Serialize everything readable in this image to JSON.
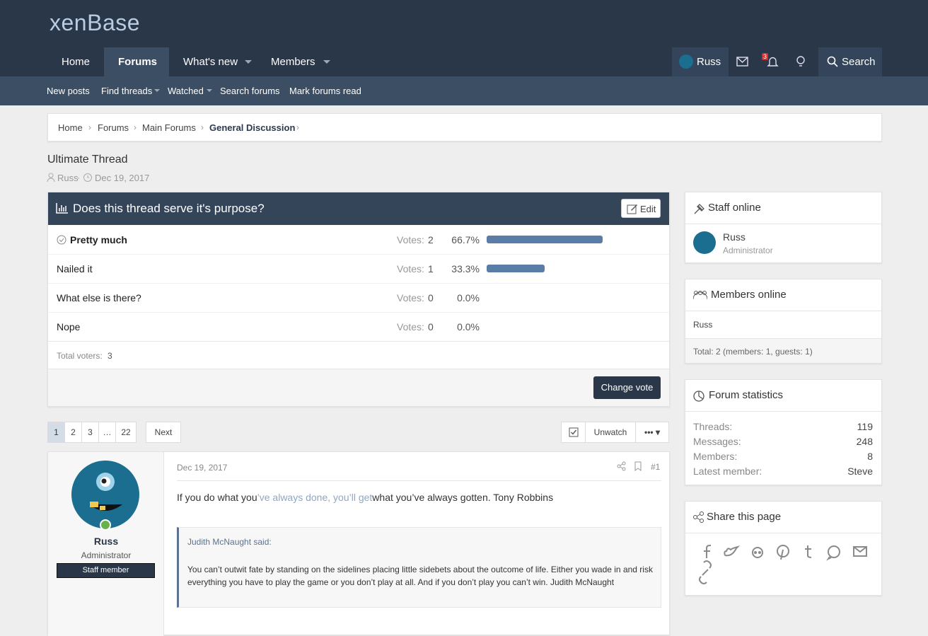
{
  "header": {
    "logo": "xenBase",
    "nav": [
      "Home",
      "Forums",
      "What's new",
      "Members"
    ],
    "user": "Russ",
    "notification_count": "3",
    "search": "Search"
  },
  "subnav": [
    "New posts",
    "Find threads",
    "Watched",
    "Search forums",
    "Mark forums read"
  ],
  "breadcrumb": [
    "Home",
    "Forums",
    "Main Forums",
    "General Discussion"
  ],
  "thread": {
    "title": "Ultimate Thread",
    "author": "Russ",
    "date": "Dec 19, 2017"
  },
  "poll": {
    "question": "Does this thread serve it's purpose?",
    "edit": "Edit",
    "votes_label": "Votes:",
    "options": [
      {
        "label": "Pretty much",
        "votes": 2,
        "percent": {
          "value": 66.7,
          "label": "66.7%"
        }
      },
      {
        "label": "Nailed it",
        "votes": 1,
        "percent": {
          "value": 33.3,
          "label": "33.3%"
        }
      },
      {
        "label": "What else is there?",
        "votes": 0,
        "percent": {
          "value": 0,
          "label": "0.0%"
        }
      },
      {
        "label": "Nope",
        "votes": 0,
        "percent": {
          "value": 0,
          "label": "0.0%"
        }
      }
    ],
    "total_label": "Total voters:",
    "total": 3,
    "change_vote": "Change vote"
  },
  "pagination": {
    "pages": [
      "1",
      "2",
      "3",
      "…",
      "22"
    ],
    "next": "Next",
    "unwatch": "Unwatch"
  },
  "post": {
    "author": "Russ",
    "role": "Administrator",
    "badge": "Staff member",
    "date": "Dec 19, 2017",
    "number": "#1",
    "text_before": "If you do what you",
    "text_link": "’ve always done, you’ll get",
    "text_after": "what you’ve always gotten. Tony Robbins",
    "quote_author": "Judith McNaught said:",
    "quote": "You can’t outwit fate by standing on the sidelines placing little sidebets about the outcome of life. Either you wade in and risk everything you have to play the game or you don’t play at all. And if you don’t play you can’t win. Judith McNaught"
  },
  "sidebar": {
    "staff_online": {
      "title": "Staff online",
      "name": "Russ",
      "role": "Administrator"
    },
    "members_online": {
      "title": "Members online",
      "member": "Russ",
      "total": "Total: 2 (members: 1, guests: 1)"
    },
    "forum_statistics": {
      "title": "Forum statistics",
      "rows": [
        [
          "Threads:",
          "119"
        ],
        [
          "Messages:",
          "248"
        ],
        [
          "Members:",
          "8"
        ],
        [
          "Latest member:",
          "Steve"
        ]
      ]
    },
    "share": {
      "title": "Share this page"
    }
  }
}
